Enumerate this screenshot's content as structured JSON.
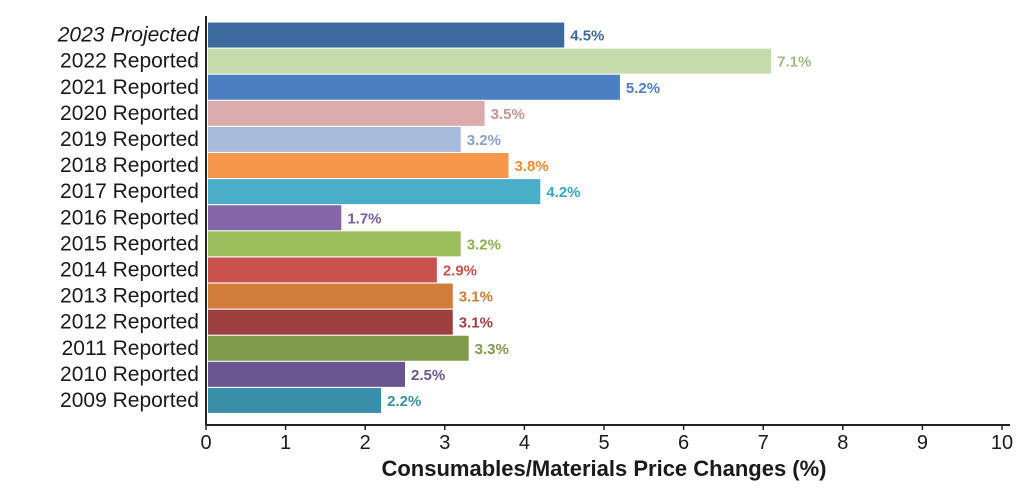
{
  "chart_data": {
    "type": "bar",
    "orientation": "horizontal",
    "title": "",
    "xlabel": "Consumables/Materials Price Changes (%)",
    "ylabel": "",
    "xlim": [
      0,
      10
    ],
    "xticks": [
      0,
      1,
      2,
      3,
      4,
      5,
      6,
      7,
      8,
      9,
      10
    ],
    "grid": false,
    "categories": [
      "2023 Projected",
      "2022 Reported",
      "2021 Reported",
      "2020 Reported",
      "2019 Reported",
      "2018 Reported",
      "2017 Reported",
      "2016 Reported",
      "2015 Reported",
      "2014 Reported",
      "2013 Reported",
      "2012 Reported",
      "2011 Reported",
      "2010 Reported",
      "2009 Reported"
    ],
    "values": [
      4.5,
      7.1,
      5.2,
      3.5,
      3.2,
      3.8,
      4.2,
      1.7,
      3.2,
      2.9,
      3.1,
      3.1,
      3.3,
      2.5,
      2.2
    ],
    "value_labels": [
      "4.5%",
      "7.1%",
      "5.2%",
      "3.5%",
      "3.2%",
      "3.8%",
      "4.2%",
      "1.7%",
      "3.2%",
      "2.9%",
      "3.1%",
      "3.1%",
      "3.3%",
      "2.5%",
      "2.2%"
    ],
    "colors": [
      "#3d6a9e",
      "#c6dbab",
      "#4a7fc1",
      "#dcabab",
      "#a9bbdc",
      "#f5964a",
      "#4aaec9",
      "#8566a8",
      "#9bbd5c",
      "#c9524e",
      "#d07c3a",
      "#9e3f3f",
      "#7f9a4a",
      "#6b5590",
      "#3a8fa8"
    ],
    "label_colors": [
      "#3d6a9e",
      "#9dbd7e",
      "#4a7fc1",
      "#c99292",
      "#8aa0c9",
      "#f08a35",
      "#3aa4c2",
      "#7a5aa0",
      "#8ab24b",
      "#c9524e",
      "#d07c3a",
      "#9e3f3f",
      "#7f9a4a",
      "#6b5590",
      "#3a8fa8"
    ],
    "italic_categories": [
      "2023 Projected"
    ]
  }
}
